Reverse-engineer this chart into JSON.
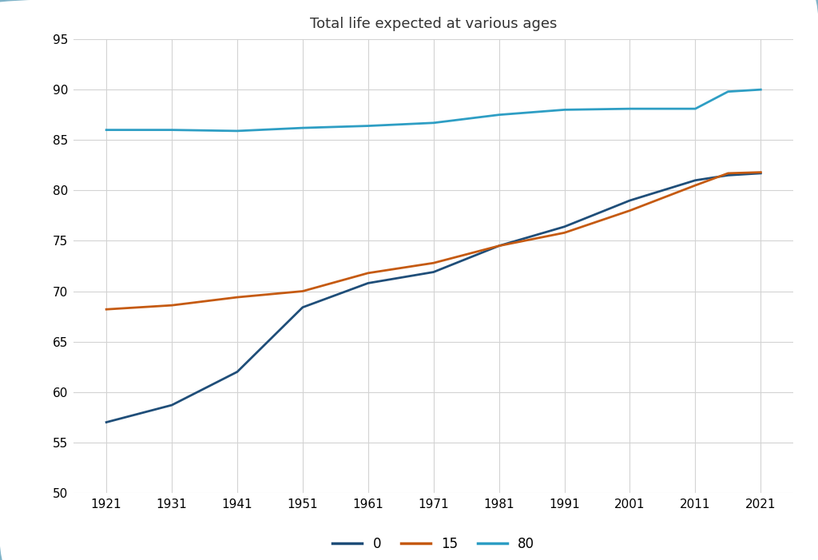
{
  "title": "Total life expected at various ages",
  "years": [
    1921,
    1931,
    1941,
    1951,
    1961,
    1971,
    1981,
    1991,
    2001,
    2011,
    2016,
    2021
  ],
  "xticks": [
    1921,
    1931,
    1941,
    1951,
    1961,
    1971,
    1981,
    1991,
    2001,
    2011,
    2021
  ],
  "series_0": [
    57.0,
    58.7,
    62.0,
    68.4,
    70.8,
    71.9,
    74.5,
    76.4,
    79.0,
    81.0,
    81.5,
    81.7
  ],
  "series_15": [
    68.2,
    68.6,
    69.4,
    70.0,
    71.8,
    72.8,
    74.5,
    75.8,
    78.0,
    80.5,
    81.7,
    81.8
  ],
  "series_80": [
    86.0,
    86.0,
    85.9,
    86.2,
    86.4,
    86.7,
    87.5,
    88.0,
    88.1,
    88.1,
    89.8,
    90.0
  ],
  "color_0": "#1f4e79",
  "color_15": "#c55a11",
  "color_80": "#2e9ec4",
  "ylim": [
    50,
    95
  ],
  "yticks": [
    50,
    55,
    60,
    65,
    70,
    75,
    80,
    85,
    90,
    95
  ],
  "background_color": "#ffffff",
  "border_color": "#7fb3c8",
  "grid_color": "#d3d3d3",
  "linewidth": 2.0
}
